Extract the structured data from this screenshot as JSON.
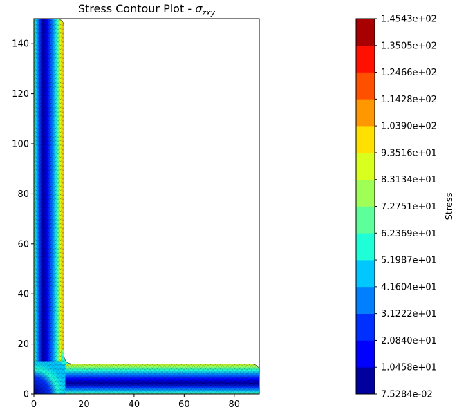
{
  "chart_data": {
    "type": "heatmap",
    "title": "Stress Contour Plot - ",
    "title_symbol": "σ",
    "title_subscript": "zxy",
    "xlim": [
      0,
      90
    ],
    "ylim": [
      0,
      150
    ],
    "x_ticks": [
      0,
      20,
      40,
      60,
      80
    ],
    "y_ticks": [
      0,
      20,
      40,
      60,
      80,
      100,
      120,
      140
    ],
    "colorbar": {
      "label": "Stress",
      "tick_labels": [
        "7.5284e-02",
        "1.0458e+01",
        "2.0840e+01",
        "3.1222e+01",
        "4.1604e+01",
        "5.1987e+01",
        "6.2369e+01",
        "7.2751e+01",
        "8.3134e+01",
        "9.3516e+01",
        "1.0390e+02",
        "1.1428e+02",
        "1.2466e+02",
        "1.3505e+02",
        "1.4543e+02"
      ],
      "colors": [
        "#00009f",
        "#0000ff",
        "#0030ff",
        "#0080ff",
        "#00c8ff",
        "#1effd8",
        "#5cff9a",
        "#a0ff56",
        "#d8ff1e",
        "#ffe000",
        "#ff9800",
        "#ff5000",
        "#ff1000",
        "#a80000"
      ]
    },
    "shape": "L-section",
    "vertical_leg": {
      "x": [
        0,
        12
      ],
      "y": [
        0,
        150
      ]
    },
    "horizontal_leg": {
      "x": [
        0,
        90
      ],
      "y": [
        0,
        12
      ]
    }
  }
}
